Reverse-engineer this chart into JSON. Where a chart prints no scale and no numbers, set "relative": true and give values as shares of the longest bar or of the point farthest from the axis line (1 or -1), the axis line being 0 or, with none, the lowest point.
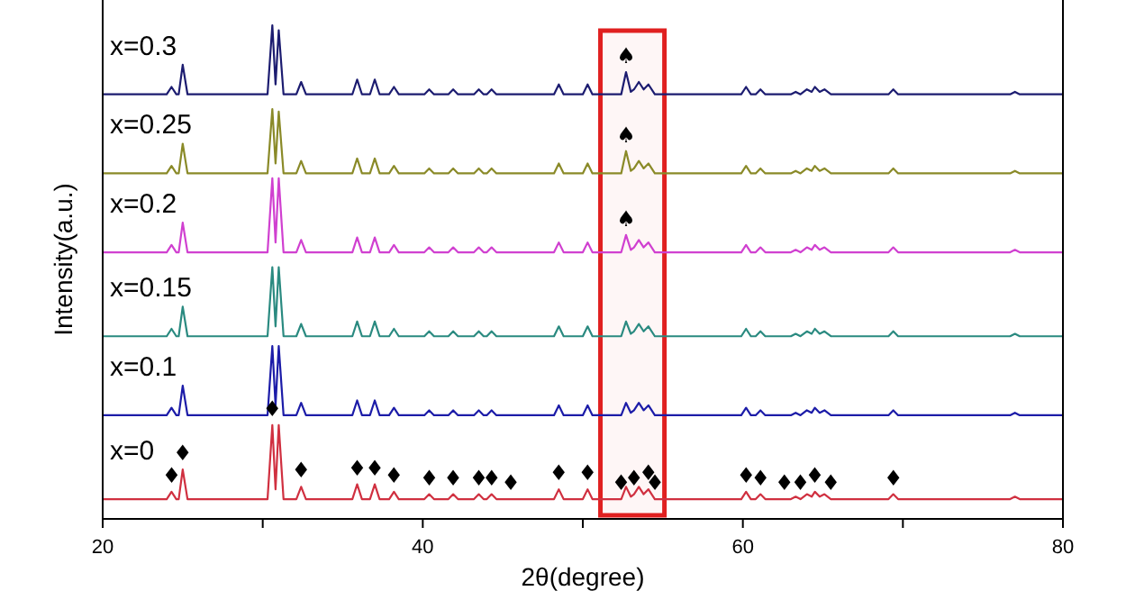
{
  "chart_data": {
    "type": "line",
    "relative": true,
    "xlabel": "2θ(degree)",
    "ylabel": "Intensity(a.u.)",
    "xlim": [
      20,
      80
    ],
    "xticks": [
      20,
      {
        "value": 30,
        "label": null
      },
      40,
      {
        "value": 50,
        "label": null
      },
      60,
      {
        "value": 70,
        "label": null
      },
      80
    ],
    "x": [
      20,
      24.0,
      24.3,
      24.6,
      24.75,
      25.0,
      25.3,
      30.3,
      30.6,
      30.8,
      31.0,
      31.3,
      32.1,
      32.4,
      32.7,
      35.6,
      35.9,
      36.2,
      36.7,
      37.0,
      37.3,
      37.9,
      38.2,
      38.5,
      40.1,
      40.4,
      40.7,
      41.6,
      41.9,
      42.2,
      43.2,
      43.5,
      43.8,
      44.0,
      44.3,
      44.6,
      48.2,
      48.5,
      48.8,
      50.0,
      50.3,
      50.6,
      52.4,
      52.7,
      53.0,
      53.2,
      53.5,
      53.8,
      54.1,
      54.5,
      59.9,
      60.2,
      60.5,
      60.8,
      61.1,
      61.4,
      63.0,
      63.3,
      63.6,
      64.0,
      64.3,
      64.5,
      64.8,
      65.1,
      65.5,
      69.1,
      69.4,
      69.7,
      76.7,
      77.0,
      77.3,
      80
    ],
    "series": [
      {
        "name": "x=0.3",
        "color": "#1c1c70",
        "values": [
          0.86,
          0.86,
          0.875,
          0.86,
          0.86,
          0.92,
          0.86,
          0.86,
          1,
          0.88,
          0.99,
          0.86,
          0.86,
          0.885,
          0.86,
          0.86,
          0.89,
          0.86,
          0.86,
          0.89,
          0.86,
          0.86,
          0.875,
          0.86,
          0.86,
          0.87,
          0.86,
          0.86,
          0.87,
          0.86,
          0.86,
          0.87,
          0.86,
          0.86,
          0.87,
          0.86,
          0.86,
          0.88,
          0.86,
          0.86,
          0.88,
          0.86,
          0.86,
          0.905,
          0.865,
          0.87,
          0.885,
          0.87,
          0.88,
          0.86,
          0.86,
          0.875,
          0.86,
          0.86,
          0.87,
          0.86,
          0.86,
          0.865,
          0.86,
          0.87,
          0.865,
          0.875,
          0.865,
          0.87,
          0.86,
          0.86,
          0.87,
          0.86,
          0.86,
          0.865,
          0.86,
          0.86
        ]
      },
      {
        "name": "x=0.25",
        "color": "#8a8a28",
        "values": [
          0.7,
          0.7,
          0.715,
          0.7,
          0.7,
          0.76,
          0.7,
          0.7,
          0.83,
          0.72,
          0.825,
          0.7,
          0.7,
          0.725,
          0.7,
          0.7,
          0.73,
          0.7,
          0.7,
          0.73,
          0.7,
          0.7,
          0.715,
          0.7,
          0.7,
          0.71,
          0.7,
          0.7,
          0.71,
          0.7,
          0.7,
          0.71,
          0.7,
          0.7,
          0.71,
          0.7,
          0.7,
          0.72,
          0.7,
          0.7,
          0.72,
          0.7,
          0.7,
          0.745,
          0.705,
          0.71,
          0.725,
          0.71,
          0.72,
          0.7,
          0.7,
          0.715,
          0.7,
          0.7,
          0.71,
          0.7,
          0.7,
          0.705,
          0.7,
          0.71,
          0.705,
          0.715,
          0.705,
          0.71,
          0.7,
          0.7,
          0.71,
          0.7,
          0.7,
          0.705,
          0.7,
          0.7
        ]
      },
      {
        "name": "x=0.2",
        "color": "#d040d0",
        "values": [
          0.54,
          0.54,
          0.555,
          0.54,
          0.54,
          0.6,
          0.54,
          0.54,
          0.69,
          0.56,
          0.69,
          0.54,
          0.54,
          0.565,
          0.54,
          0.54,
          0.57,
          0.54,
          0.54,
          0.57,
          0.54,
          0.54,
          0.555,
          0.54,
          0.54,
          0.55,
          0.54,
          0.54,
          0.55,
          0.54,
          0.54,
          0.55,
          0.54,
          0.54,
          0.55,
          0.54,
          0.54,
          0.56,
          0.54,
          0.54,
          0.56,
          0.54,
          0.54,
          0.575,
          0.545,
          0.55,
          0.565,
          0.55,
          0.56,
          0.54,
          0.54,
          0.555,
          0.54,
          0.54,
          0.55,
          0.54,
          0.54,
          0.545,
          0.54,
          0.55,
          0.545,
          0.555,
          0.545,
          0.55,
          0.54,
          0.54,
          0.55,
          0.54,
          0.54,
          0.545,
          0.54,
          0.54
        ]
      },
      {
        "name": "x=0.15",
        "color": "#2a8a80",
        "values": [
          0.37,
          0.37,
          0.385,
          0.37,
          0.37,
          0.43,
          0.37,
          0.37,
          0.51,
          0.39,
          0.51,
          0.37,
          0.37,
          0.395,
          0.37,
          0.37,
          0.4,
          0.37,
          0.37,
          0.4,
          0.37,
          0.37,
          0.385,
          0.37,
          0.37,
          0.38,
          0.37,
          0.37,
          0.38,
          0.37,
          0.37,
          0.38,
          0.37,
          0.37,
          0.38,
          0.37,
          0.37,
          0.39,
          0.37,
          0.37,
          0.39,
          0.37,
          0.37,
          0.4,
          0.375,
          0.38,
          0.395,
          0.38,
          0.39,
          0.37,
          0.37,
          0.385,
          0.37,
          0.37,
          0.38,
          0.37,
          0.37,
          0.375,
          0.37,
          0.38,
          0.375,
          0.385,
          0.375,
          0.38,
          0.37,
          0.37,
          0.38,
          0.37,
          0.37,
          0.375,
          0.37,
          0.37
        ]
      },
      {
        "name": "x=0.1",
        "color": "#1c1ca8",
        "values": [
          0.21,
          0.21,
          0.225,
          0.21,
          0.21,
          0.27,
          0.21,
          0.21,
          0.35,
          0.23,
          0.35,
          0.21,
          0.21,
          0.235,
          0.21,
          0.21,
          0.24,
          0.21,
          0.21,
          0.24,
          0.21,
          0.21,
          0.225,
          0.21,
          0.21,
          0.22,
          0.21,
          0.21,
          0.22,
          0.21,
          0.21,
          0.22,
          0.21,
          0.21,
          0.22,
          0.21,
          0.21,
          0.23,
          0.21,
          0.21,
          0.23,
          0.21,
          0.21,
          0.235,
          0.215,
          0.22,
          0.235,
          0.22,
          0.23,
          0.21,
          0.21,
          0.225,
          0.21,
          0.21,
          0.22,
          0.21,
          0.21,
          0.215,
          0.21,
          0.22,
          0.215,
          0.225,
          0.215,
          0.22,
          0.21,
          0.21,
          0.22,
          0.21,
          0.21,
          0.215,
          0.21,
          0.21
        ]
      },
      {
        "name": "x=0",
        "color": "#d03040",
        "values": [
          0.04,
          0.04,
          0.055,
          0.04,
          0.04,
          0.1,
          0.04,
          0.04,
          0.19,
          0.06,
          0.19,
          0.04,
          0.04,
          0.065,
          0.04,
          0.04,
          0.07,
          0.04,
          0.04,
          0.07,
          0.04,
          0.04,
          0.055,
          0.04,
          0.04,
          0.05,
          0.04,
          0.04,
          0.05,
          0.04,
          0.04,
          0.05,
          0.04,
          0.04,
          0.05,
          0.04,
          0.04,
          0.06,
          0.04,
          0.04,
          0.06,
          0.04,
          0.04,
          0.065,
          0.045,
          0.05,
          0.065,
          0.05,
          0.06,
          0.04,
          0.04,
          0.055,
          0.04,
          0.04,
          0.05,
          0.04,
          0.04,
          0.045,
          0.04,
          0.05,
          0.045,
          0.055,
          0.045,
          0.05,
          0.04,
          0.04,
          0.05,
          0.04,
          0.04,
          0.045,
          0.04,
          0.04
        ]
      }
    ],
    "bands": [
      {
        "axis": "x",
        "from": 51.1,
        "to": 55.1,
        "color": "#e02020"
      }
    ],
    "annotations": [
      {
        "text": "♦",
        "x": 24.3,
        "y": 0.055
      },
      {
        "text": "♦",
        "x": 25.0,
        "y": 0.1
      },
      {
        "text": "♦",
        "x": 30.6,
        "y": 0.19
      },
      {
        "text": "♦",
        "x": 32.4,
        "y": 0.065
      },
      {
        "text": "♦",
        "x": 35.9,
        "y": 0.07
      },
      {
        "text": "♦",
        "x": 37.0,
        "y": 0.07
      },
      {
        "text": "♦",
        "x": 38.2,
        "y": 0.055
      },
      {
        "text": "♦",
        "x": 40.4,
        "y": 0.05
      },
      {
        "text": "♦",
        "x": 41.9,
        "y": 0.05
      },
      {
        "text": "♦",
        "x": 43.5,
        "y": 0.05
      },
      {
        "text": "♦",
        "x": 44.3,
        "y": 0.05
      },
      {
        "text": "♦",
        "x": 45.5,
        "y": 0.04
      },
      {
        "text": "♦",
        "x": 48.5,
        "y": 0.06
      },
      {
        "text": "♦",
        "x": 50.3,
        "y": 0.06
      },
      {
        "text": "♦",
        "x": 52.4,
        "y": 0.04
      },
      {
        "text": "♦",
        "x": 53.2,
        "y": 0.05
      },
      {
        "text": "♦",
        "x": 54.1,
        "y": 0.06
      },
      {
        "text": "♦",
        "x": 54.5,
        "y": 0.04
      },
      {
        "text": "♦",
        "x": 60.2,
        "y": 0.055
      },
      {
        "text": "♦",
        "x": 61.1,
        "y": 0.05
      },
      {
        "text": "♦",
        "x": 62.6,
        "y": 0.04
      },
      {
        "text": "♦",
        "x": 63.6,
        "y": 0.04
      },
      {
        "text": "♦",
        "x": 64.5,
        "y": 0.055
      },
      {
        "text": "♦",
        "x": 65.5,
        "y": 0.04
      },
      {
        "text": "♦",
        "x": 69.4,
        "y": 0.05
      },
      {
        "text": "♠",
        "x": 52.7,
        "y": 0.905
      },
      {
        "text": "♠",
        "x": 52.7,
        "y": 0.745
      },
      {
        "text": "♠",
        "x": 52.7,
        "y": 0.575
      }
    ]
  }
}
